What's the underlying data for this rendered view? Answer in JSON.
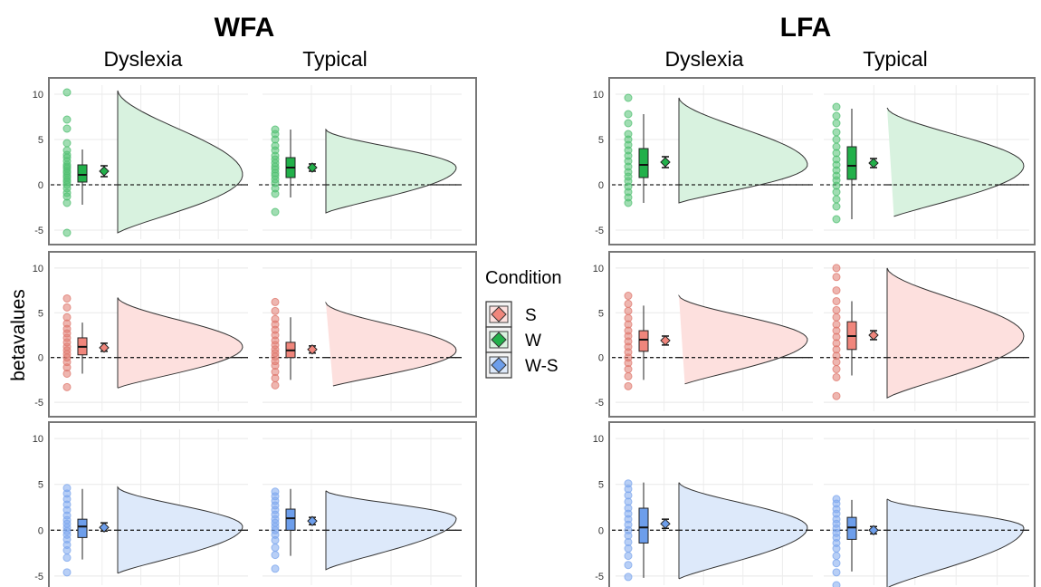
{
  "figure": {
    "regions": [
      {
        "title": "WFA",
        "col_labels": [
          "Dyslexia",
          "Typical"
        ]
      },
      {
        "title": "LFA",
        "col_labels": [
          "Dyslexia",
          "Typical"
        ]
      }
    ],
    "ylabel": "betavalues",
    "legend": {
      "title": "Condition",
      "items": [
        {
          "label": "S",
          "color": "#f0867c",
          "light": "#fde0de",
          "point": "#e07a70"
        },
        {
          "label": "W",
          "color": "#22b04a",
          "light": "#d8f2df",
          "point": "#52c173"
        },
        {
          "label": "W-S",
          "color": "#6d9eeb",
          "light": "#dde9fa",
          "point": "#7ea8ee"
        }
      ]
    }
  },
  "chart_data": [
    {
      "type": "raincloud",
      "title": "WFA",
      "region": "WFA",
      "condition": "W",
      "ylim": [
        -6,
        11
      ],
      "y_ticks": [
        -5,
        0,
        5,
        10
      ],
      "grid": true,
      "groups": [
        {
          "name": "Dyslexia",
          "points": [
            10.2,
            7.2,
            6.2,
            4.6,
            3.8,
            3.3,
            3.0,
            2.6,
            2.2,
            2.0,
            1.8,
            1.5,
            1.3,
            1.0,
            0.8,
            0.5,
            0.3,
            0.0,
            -0.4,
            -0.9,
            -1.3,
            -2.0,
            -5.3
          ],
          "box": {
            "min": -2.2,
            "q1": 0.3,
            "median": 1.1,
            "q3": 2.2,
            "max": 3.9
          },
          "mean": 1.5,
          "ci": [
            0.9,
            2.1
          ],
          "density_top": 10.4,
          "density_bottom": -5.3
        },
        {
          "name": "Typical",
          "points": [
            6.1,
            5.6,
            5.0,
            4.3,
            3.8,
            3.2,
            2.8,
            2.4,
            2.0,
            1.7,
            1.3,
            1.0,
            0.6,
            0.2,
            -0.4,
            -1.0,
            -3.0
          ],
          "box": {
            "min": -1.4,
            "q1": 0.8,
            "median": 1.9,
            "q3": 3.0,
            "max": 6.1
          },
          "mean": 1.9,
          "ci": [
            1.5,
            2.3
          ],
          "density_top": 6.1,
          "density_bottom": -3.1
        }
      ]
    },
    {
      "type": "raincloud",
      "title": "WFA",
      "region": "WFA",
      "condition": "S",
      "ylim": [
        -6,
        11
      ],
      "y_ticks": [
        -5,
        0,
        5,
        10
      ],
      "grid": true,
      "groups": [
        {
          "name": "Dyslexia",
          "points": [
            6.6,
            5.6,
            4.5,
            3.8,
            3.2,
            2.7,
            2.2,
            1.7,
            1.2,
            0.8,
            0.4,
            0.0,
            -0.5,
            -1.1,
            -1.8,
            -3.3
          ],
          "box": {
            "min": -1.8,
            "q1": 0.3,
            "median": 1.2,
            "q3": 2.2,
            "max": 3.9
          },
          "mean": 1.1,
          "ci": [
            0.7,
            1.6
          ],
          "density_top": 6.7,
          "density_bottom": -3.4
        },
        {
          "name": "Typical",
          "points": [
            6.2,
            5.2,
            4.3,
            3.7,
            3.1,
            2.5,
            1.9,
            1.4,
            0.9,
            0.5,
            0.1,
            -0.4,
            -0.9,
            -1.6,
            -2.3,
            -3.1
          ],
          "box": {
            "min": -2.5,
            "q1": 0.0,
            "median": 0.8,
            "q3": 1.7,
            "max": 4.5
          },
          "mean": 0.9,
          "ci": [
            0.5,
            1.3
          ],
          "density_top": 6.1,
          "density_bottom": -3.4
        }
      ]
    },
    {
      "type": "raincloud",
      "title": "WFA",
      "region": "WFA",
      "condition": "W-S",
      "ylim": [
        -6,
        11
      ],
      "y_ticks": [
        -5,
        0,
        5,
        10
      ],
      "grid": true,
      "groups": [
        {
          "name": "Dyslexia",
          "points": [
            4.6,
            4.0,
            3.4,
            2.8,
            2.2,
            1.6,
            1.1,
            0.7,
            0.3,
            -0.1,
            -0.5,
            -1.0,
            -1.6,
            -2.2,
            -3.0,
            -4.6
          ],
          "box": {
            "min": -3.2,
            "q1": -0.8,
            "median": 0.4,
            "q3": 1.2,
            "max": 4.5
          },
          "mean": 0.3,
          "ci": [
            -0.1,
            0.8
          ],
          "density_top": 4.7,
          "density_bottom": -4.7
        },
        {
          "name": "Typical",
          "points": [
            4.2,
            3.7,
            3.2,
            2.7,
            2.2,
            1.7,
            1.2,
            0.8,
            0.4,
            0.0,
            -0.5,
            -1.1,
            -1.9,
            -2.7,
            -4.2
          ],
          "box": {
            "min": -2.8,
            "q1": 0.0,
            "median": 1.3,
            "q3": 2.3,
            "max": 4.5
          },
          "mean": 1.0,
          "ci": [
            0.6,
            1.4
          ],
          "density_top": 4.3,
          "density_bottom": -4.3
        }
      ]
    },
    {
      "type": "raincloud",
      "title": "LFA",
      "region": "LFA",
      "condition": "W",
      "ylim": [
        -6,
        11
      ],
      "y_ticks": [
        -5,
        0,
        5,
        10
      ],
      "grid": true,
      "groups": [
        {
          "name": "Dyslexia",
          "points": [
            9.6,
            7.8,
            6.8,
            5.6,
            5.0,
            4.4,
            3.8,
            3.2,
            2.6,
            2.0,
            1.4,
            0.9,
            0.4,
            -0.2,
            -0.8,
            -1.4,
            -2.0
          ],
          "box": {
            "min": -2.0,
            "q1": 0.8,
            "median": 2.2,
            "q3": 4.0,
            "max": 7.8
          },
          "mean": 2.5,
          "ci": [
            1.9,
            3.1
          ],
          "density_top": 9.6,
          "density_bottom": -2.0
        },
        {
          "name": "Typical",
          "points": [
            8.6,
            7.6,
            6.8,
            5.8,
            5.0,
            4.2,
            3.5,
            2.8,
            2.2,
            1.6,
            1.0,
            0.5,
            -0.1,
            -0.8,
            -1.6,
            -2.4,
            -3.8
          ],
          "box": {
            "min": -3.8,
            "q1": 0.6,
            "median": 2.1,
            "q3": 4.2,
            "max": 8.4
          },
          "mean": 2.4,
          "ci": [
            1.9,
            2.9
          ],
          "density_top": 8.5,
          "density_bottom": -3.8
        }
      ]
    },
    {
      "type": "raincloud",
      "title": "LFA",
      "region": "LFA",
      "condition": "S",
      "ylim": [
        -6,
        11
      ],
      "y_ticks": [
        -5,
        0,
        5,
        10
      ],
      "grid": true,
      "groups": [
        {
          "name": "Dyslexia",
          "points": [
            6.9,
            6.0,
            5.2,
            4.4,
            3.7,
            3.0,
            2.4,
            1.8,
            1.2,
            0.6,
            0.0,
            -0.6,
            -1.3,
            -2.1,
            -3.2
          ],
          "box": {
            "min": -2.5,
            "q1": 0.7,
            "median": 2.0,
            "q3": 3.0,
            "max": 5.8
          },
          "mean": 1.9,
          "ci": [
            1.4,
            2.4
          ],
          "density_top": 6.9,
          "density_bottom": -3.2
        },
        {
          "name": "Typical",
          "points": [
            10.0,
            9.0,
            7.5,
            6.3,
            5.3,
            4.5,
            3.7,
            3.0,
            2.3,
            1.6,
            0.9,
            0.2,
            -0.5,
            -1.3,
            -2.2,
            -4.3
          ],
          "box": {
            "min": -2.0,
            "q1": 0.9,
            "median": 2.4,
            "q3": 4.0,
            "max": 6.3
          },
          "mean": 2.5,
          "ci": [
            2.0,
            3.0
          ],
          "density_top": 10.0,
          "density_bottom": -4.5
        }
      ]
    },
    {
      "type": "raincloud",
      "title": "LFA",
      "region": "LFA",
      "condition": "W-S",
      "ylim": [
        -6,
        11
      ],
      "y_ticks": [
        -5,
        0,
        5,
        10
      ],
      "grid": true,
      "groups": [
        {
          "name": "Dyslexia",
          "points": [
            5.1,
            4.5,
            3.8,
            3.1,
            2.4,
            1.8,
            1.2,
            0.6,
            0.0,
            -0.6,
            -1.3,
            -2.0,
            -2.8,
            -3.8,
            -5.1
          ],
          "box": {
            "min": -5.2,
            "q1": -1.4,
            "median": 0.3,
            "q3": 2.4,
            "max": 5.2
          },
          "mean": 0.7,
          "ci": [
            0.2,
            1.2
          ],
          "density_top": 5.2,
          "density_bottom": -5.3
        },
        {
          "name": "Typical",
          "points": [
            3.4,
            2.9,
            2.3,
            1.8,
            1.2,
            0.7,
            0.2,
            -0.3,
            -0.8,
            -1.4,
            -2.0,
            -2.8,
            -3.6,
            -4.6,
            -6.0
          ],
          "box": {
            "min": -4.5,
            "q1": -1.0,
            "median": 0.3,
            "q3": 1.4,
            "max": 3.3
          },
          "mean": 0.0,
          "ci": [
            -0.4,
            0.4
          ],
          "density_top": 3.4,
          "density_bottom": -6.3
        }
      ]
    }
  ]
}
